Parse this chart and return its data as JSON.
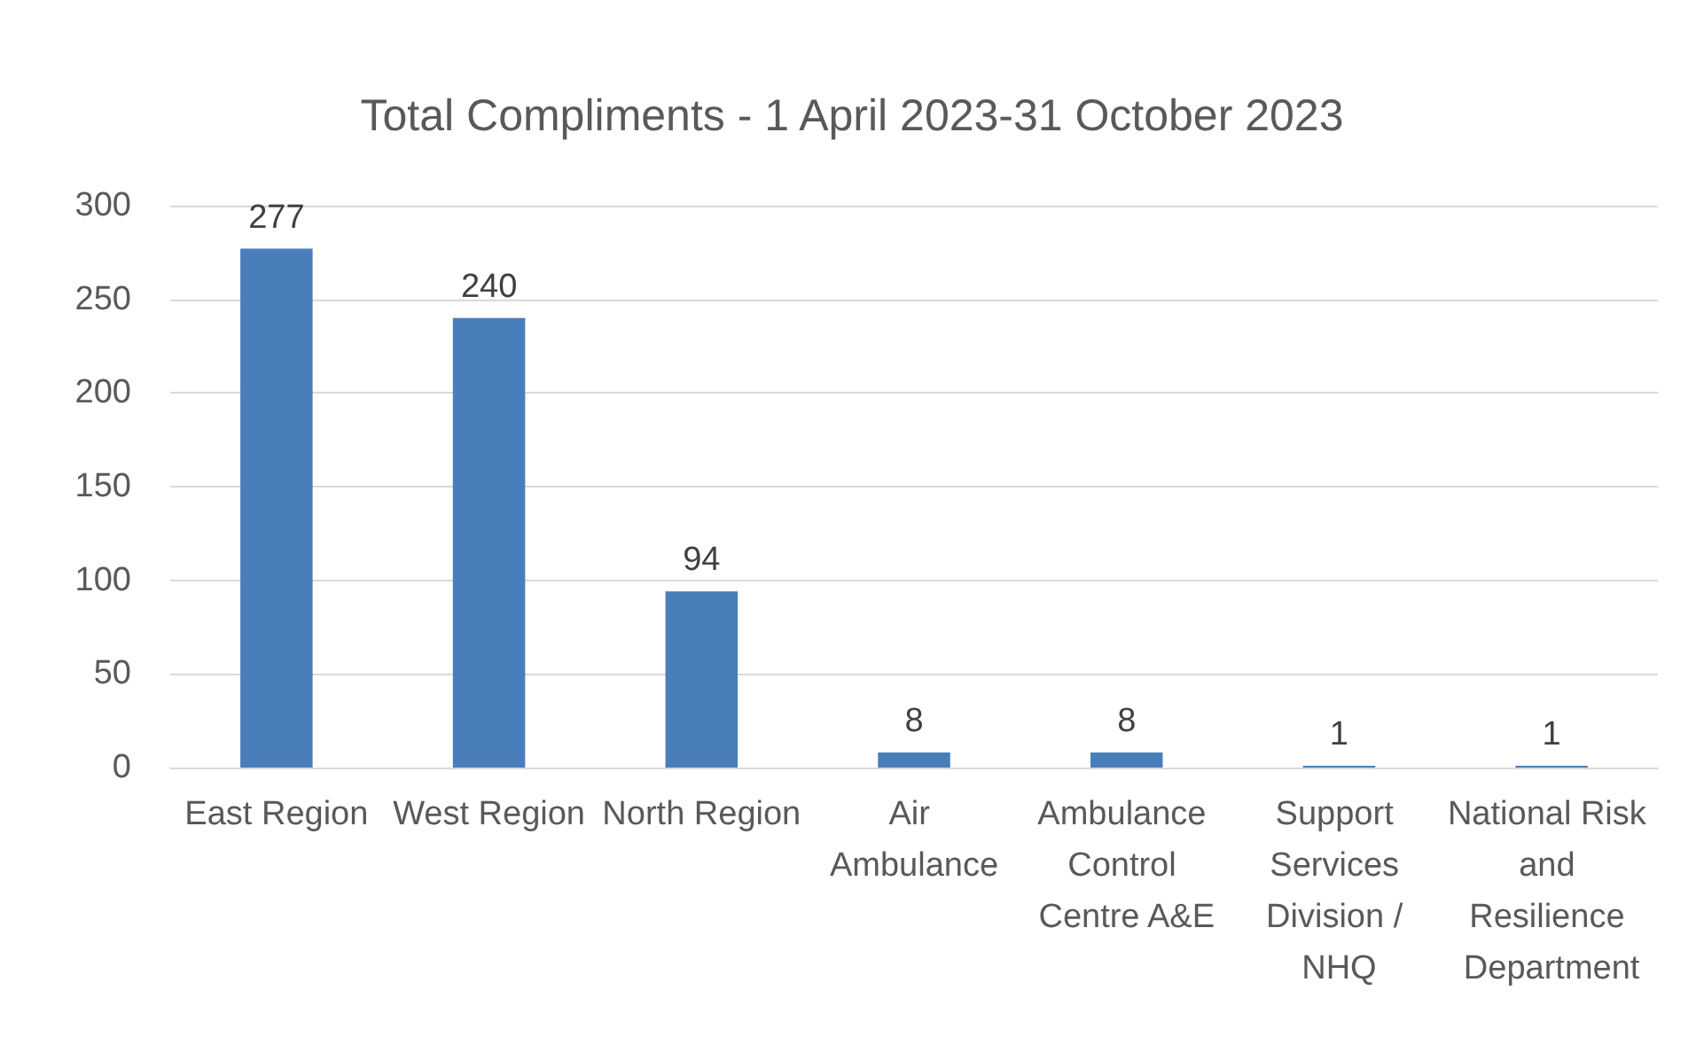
{
  "chart_data": {
    "type": "bar",
    "title": "Total Compliments - 1 April 2023-31 October 2023",
    "categories": [
      "East Region",
      "West Region",
      "North Region",
      "Air Ambulance",
      "Ambulance Control Centre A&E",
      "Support Services Division / NHQ",
      "National Risk and Resilience Department"
    ],
    "values": [
      277,
      240,
      94,
      8,
      8,
      1,
      1
    ],
    "color": "#4a7ebb",
    "ylim": [
      0,
      300
    ],
    "yticks": [
      0,
      50,
      100,
      150,
      200,
      250,
      300
    ],
    "grid": "y",
    "data_labels": true
  }
}
